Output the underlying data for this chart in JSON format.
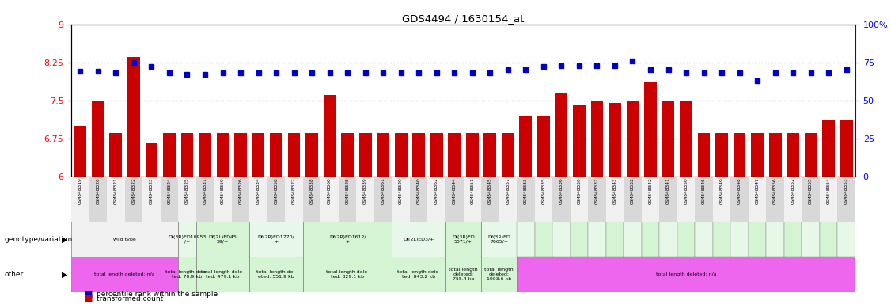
{
  "title": "GDS4494 / 1630154_at",
  "gsm_labels": [
    "GSM848319",
    "GSM848320",
    "GSM848321",
    "GSM848322",
    "GSM848323",
    "GSM848324",
    "GSM848325",
    "GSM848331",
    "GSM848359",
    "GSM848326",
    "GSM848334",
    "GSM848358",
    "GSM848327",
    "GSM848338",
    "GSM848360",
    "GSM848328",
    "GSM848339",
    "GSM848361",
    "GSM848329",
    "GSM848340",
    "GSM848362",
    "GSM848344",
    "GSM848351",
    "GSM848345",
    "GSM848357",
    "GSM848333",
    "GSM848335",
    "GSM848336",
    "GSM848330",
    "GSM848337",
    "GSM848343",
    "GSM848332",
    "GSM848342",
    "GSM848341",
    "GSM848350",
    "GSM848346",
    "GSM848349",
    "GSM848348",
    "GSM848347",
    "GSM848356",
    "GSM848352",
    "GSM848355",
    "GSM848354",
    "GSM848353"
  ],
  "bar_values": [
    7.0,
    7.5,
    6.85,
    8.35,
    6.65,
    6.85,
    6.85,
    6.85,
    6.85,
    6.85,
    6.85,
    6.85,
    6.85,
    6.85,
    7.6,
    6.85,
    6.85,
    6.85,
    6.85,
    6.85,
    6.85,
    6.85,
    6.85,
    6.85,
    6.85,
    7.2,
    7.2,
    7.65,
    7.4,
    7.5,
    7.45,
    7.5,
    7.85,
    7.5,
    7.5,
    6.85,
    6.85,
    6.85,
    6.85,
    6.85,
    6.85,
    6.85,
    7.1,
    7.1
  ],
  "dot_pct": [
    69,
    69,
    68,
    75,
    72,
    68,
    67,
    67,
    68,
    68,
    68,
    68,
    68,
    68,
    68,
    68,
    68,
    68,
    68,
    68,
    68,
    68,
    68,
    68,
    70,
    70,
    72,
    73,
    73,
    73,
    73,
    76,
    70,
    70,
    68,
    68,
    68,
    68,
    63,
    68,
    68,
    68,
    68,
    70
  ],
  "ylim_left": [
    6.0,
    9.0
  ],
  "yticks_left": [
    6.0,
    6.75,
    7.5,
    8.25,
    9.0
  ],
  "ytick_labels_left": [
    "6",
    "6.75",
    "7.5",
    "8.25",
    "9"
  ],
  "ylim_right": [
    0,
    100
  ],
  "yticks_right": [
    0,
    25,
    50,
    75,
    100
  ],
  "ytick_labels_right": [
    "0",
    "25",
    "50",
    "75",
    "100%"
  ],
  "bar_color": "#cc0000",
  "dot_color": "#0000cc",
  "hline_values": [
    6.75,
    7.5,
    8.25
  ],
  "geno_groups": [
    {
      "label": "wild type",
      "start": 0,
      "end": 5,
      "bg": "#f0f0f0"
    },
    {
      "label": "Df(3R)ED10953\n/+",
      "start": 6,
      "end": 6,
      "bg": "#e8f8e8"
    },
    {
      "label": "Df(2L)ED45\n59/+",
      "start": 7,
      "end": 9,
      "bg": "#d4f4d4"
    },
    {
      "label": "Df(2R)ED1770/\n+",
      "start": 10,
      "end": 12,
      "bg": "#e8f8e8"
    },
    {
      "label": "Df(2R)ED1612/\n+",
      "start": 13,
      "end": 17,
      "bg": "#d4f4d4"
    },
    {
      "label": "Df(2L)ED3/+",
      "start": 18,
      "end": 20,
      "bg": "#e8f8e8"
    },
    {
      "label": "Df(3R)ED\n5071/+",
      "start": 21,
      "end": 22,
      "bg": "#d4f4d4"
    },
    {
      "label": "Df(3R)ED\n7665/+",
      "start": 23,
      "end": 24,
      "bg": "#e8f8e8"
    }
  ],
  "other_groups": [
    {
      "label": "total length deleted: n/a",
      "start": 0,
      "end": 5,
      "bg": "#ee66ee"
    },
    {
      "label": "total length dele-\nted: 70.9 kb",
      "start": 6,
      "end": 6,
      "bg": "#d4f4d4"
    },
    {
      "label": "total length dele-\nted: 479.1 kb",
      "start": 7,
      "end": 9,
      "bg": "#d4f4d4"
    },
    {
      "label": "total length del-\neted: 551.9 kb",
      "start": 10,
      "end": 12,
      "bg": "#d4f4d4"
    },
    {
      "label": "total length dele-\nted: 829.1 kb",
      "start": 13,
      "end": 17,
      "bg": "#d4f4d4"
    },
    {
      "label": "total length dele-\nted: 843.2 kb",
      "start": 18,
      "end": 20,
      "bg": "#d4f4d4"
    },
    {
      "label": "total length\ndeleted:\n755.4 kb",
      "start": 21,
      "end": 22,
      "bg": "#d4f4d4"
    },
    {
      "label": "total length\ndeleted:\n1003.6 kb",
      "start": 23,
      "end": 24,
      "bg": "#d4f4d4"
    },
    {
      "label": "total length deleted: n/a",
      "start": 25,
      "end": 43,
      "bg": "#ee66ee"
    }
  ]
}
